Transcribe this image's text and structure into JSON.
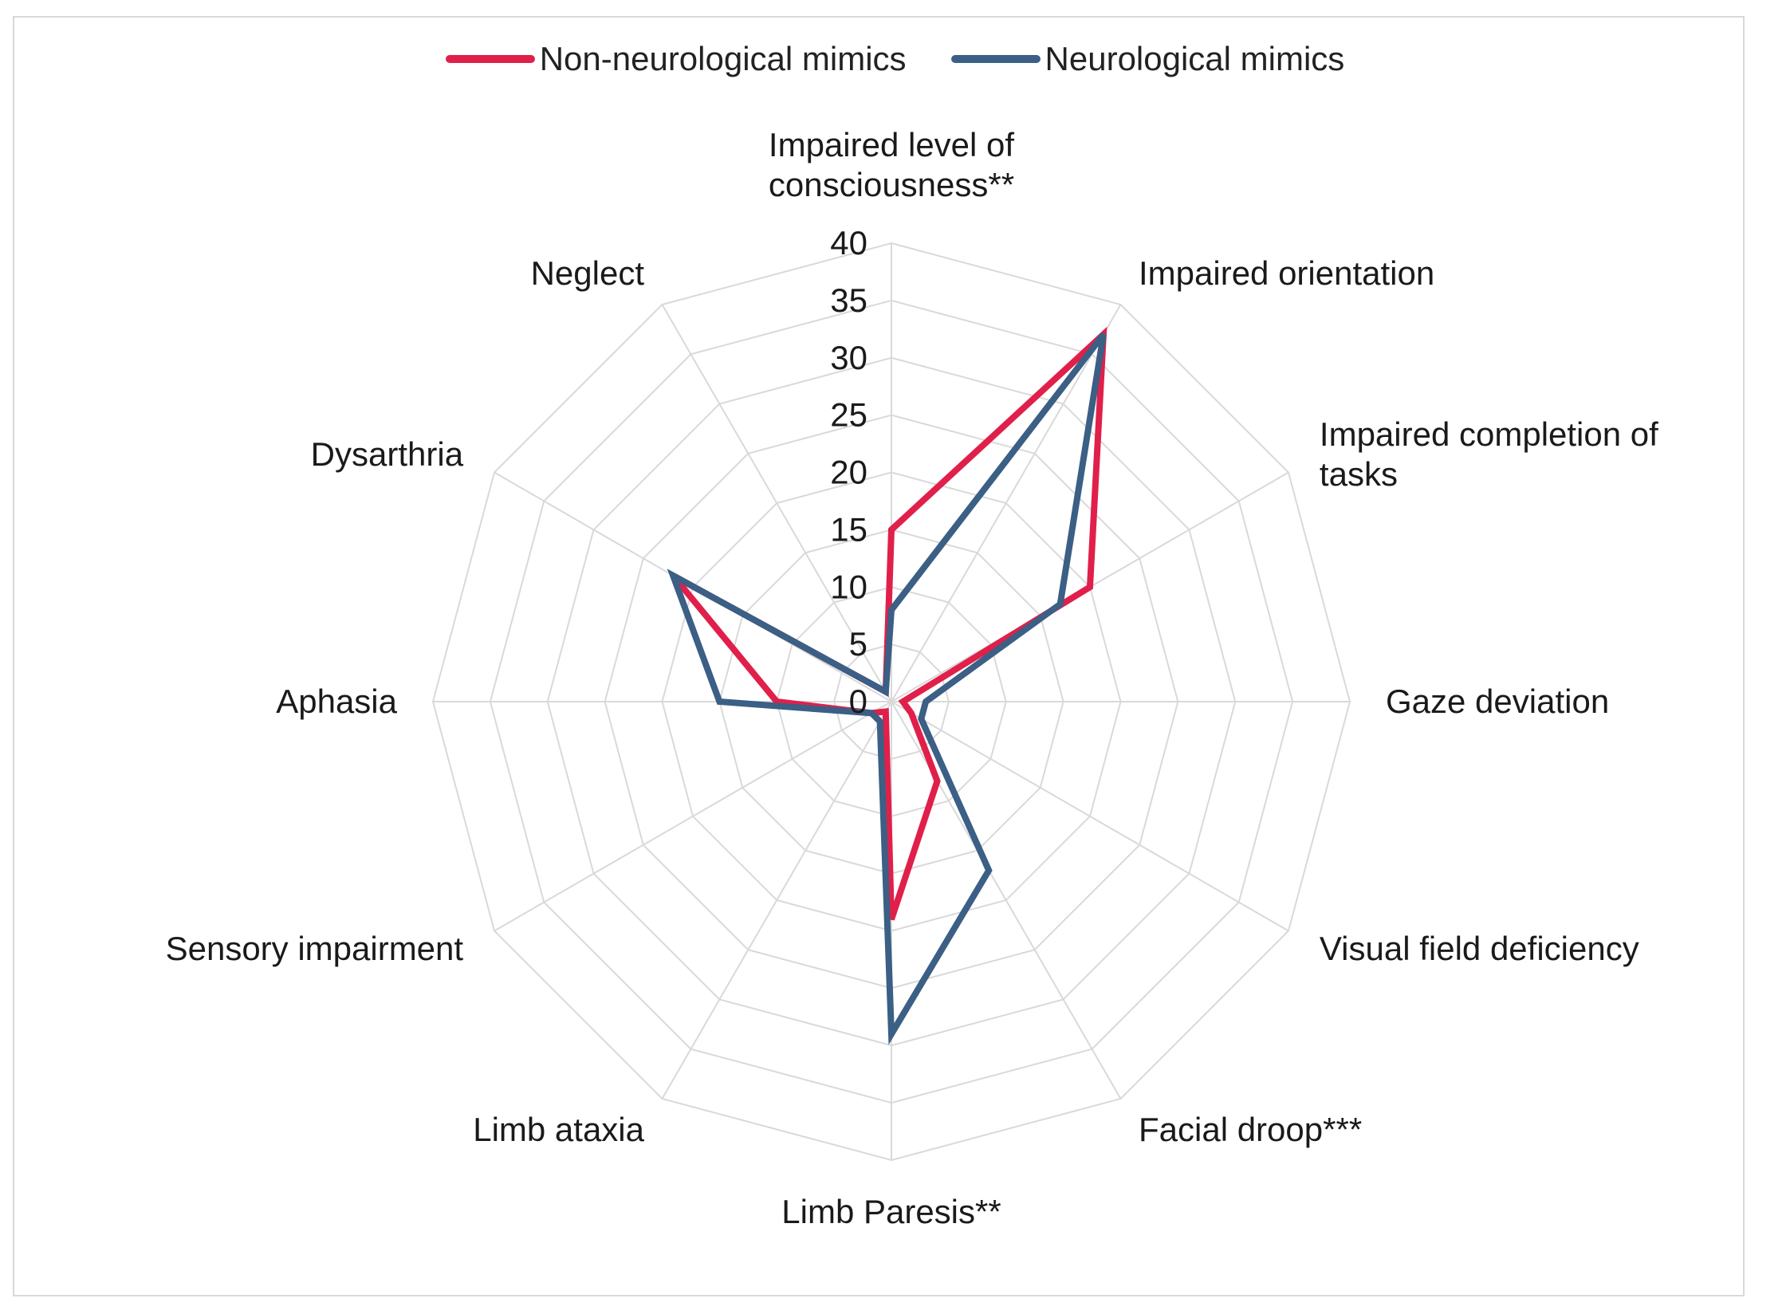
{
  "chart_data": {
    "type": "radar",
    "title": "",
    "categories": [
      "Impaired level of consciousness**",
      "Impaired orientation",
      "Impaired completion of tasks",
      "Gaze deviation",
      "Visual field deficiency",
      "Facial droop***",
      "Limb Paresis**",
      "Limb ataxia",
      "Sensory impairment",
      "Aphasia",
      "Dysarthria",
      "Neglect"
    ],
    "category_lines": [
      [
        "Impaired level of",
        "consciousness**"
      ],
      [
        "Impaired orientation"
      ],
      [
        "Impaired completion of",
        "tasks"
      ],
      [
        "Gaze deviation"
      ],
      [
        "Visual field deficiency"
      ],
      [
        "Facial droop***"
      ],
      [
        "Limb Paresis**"
      ],
      [
        "Limb ataxia"
      ],
      [
        "Sensory impairment"
      ],
      [
        "Aphasia"
      ],
      [
        "Dysarthria"
      ],
      [
        "Neglect"
      ]
    ],
    "series": [
      {
        "name": "Non-neurological mimics",
        "color": "#e0204a",
        "values": [
          15,
          37,
          20,
          1,
          2,
          8,
          19,
          1,
          2,
          10,
          22,
          1
        ]
      },
      {
        "name": "Neurological mimics",
        "color": "#3b5f85",
        "values": [
          8,
          37,
          17,
          3,
          3,
          17,
          29,
          2,
          2,
          15,
          22,
          1
        ]
      }
    ],
    "rlim": [
      0,
      40
    ],
    "ticks": [
      0,
      5,
      10,
      15,
      20,
      25,
      30,
      35,
      40
    ],
    "grid": true,
    "legend": "top-center"
  },
  "colors": {
    "grid": "#d9d9d9",
    "frame": "#d9d9d9",
    "text": "#1a1a1a"
  }
}
